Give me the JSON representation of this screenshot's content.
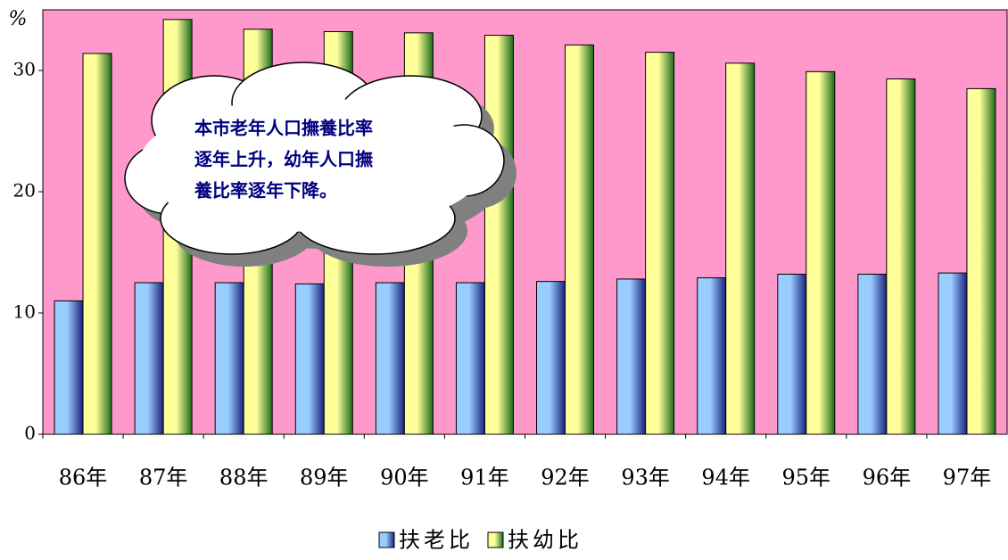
{
  "chart_data": {
    "type": "bar",
    "y_label": "%",
    "categories": [
      "86年",
      "87年",
      "88年",
      "89年",
      "90年",
      "91年",
      "92年",
      "93年",
      "94年",
      "95年",
      "96年",
      "97年"
    ],
    "series": [
      {
        "name": "扶老比",
        "color": "#99ccff",
        "values": [
          11.0,
          12.5,
          12.5,
          12.4,
          12.5,
          12.5,
          12.6,
          12.8,
          12.9,
          13.2,
          13.2,
          13.3
        ]
      },
      {
        "name": "扶幼比",
        "color": "#ffff99",
        "values": [
          31.4,
          34.2,
          33.4,
          33.2,
          33.1,
          32.9,
          32.1,
          31.5,
          30.6,
          29.9,
          29.3,
          28.5
        ]
      }
    ],
    "ylim": [
      0,
      35
    ],
    "yticks": [
      0,
      10,
      20,
      30
    ],
    "plot_background": "#ff99cc",
    "annotation": [
      "本市老年人口撫養比率",
      "逐年上升，幼年人口撫",
      "養比率逐年下降。"
    ]
  }
}
